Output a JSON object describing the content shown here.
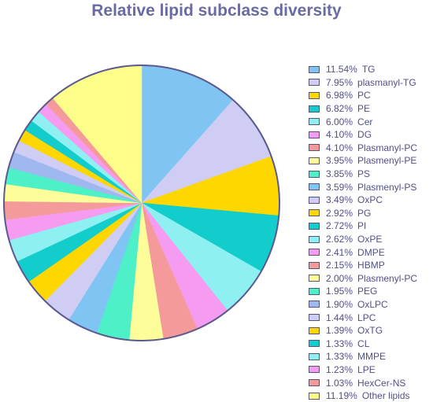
{
  "chart_data": {
    "type": "pie",
    "title": "Relative lipid subclass diversity",
    "legend_position": "right",
    "slices": [
      {
        "label": "TG",
        "value": 11.54,
        "pct_text": "11.54%",
        "color": "#7fc4f2"
      },
      {
        "label": "plasmanyl-TG",
        "value": 7.95,
        "pct_text": "7.95%",
        "color": "#cfcdf3"
      },
      {
        "label": "PC",
        "value": 6.98,
        "pct_text": "6.98%",
        "color": "#ffd700"
      },
      {
        "label": "PE",
        "value": 6.82,
        "pct_text": "6.82%",
        "color": "#13cccc"
      },
      {
        "label": "Cer",
        "value": 6.0,
        "pct_text": "6.00%",
        "color": "#8ef0f0"
      },
      {
        "label": "DG",
        "value": 4.1,
        "pct_text": "4.10%",
        "color": "#f59cf0"
      },
      {
        "label": "Plasmanyl-PC",
        "value": 4.1,
        "pct_text": "4.10%",
        "color": "#f59a9a"
      },
      {
        "label": "Plasmenyl-PE",
        "value": 3.95,
        "pct_text": "3.95%",
        "color": "#fdfd9a"
      },
      {
        "label": "PS",
        "value": 3.85,
        "pct_text": "3.85%",
        "color": "#4ef0c8"
      },
      {
        "label": "Plasmenyl-PS",
        "value": 3.59,
        "pct_text": "3.59%",
        "color": "#7fc4f2"
      },
      {
        "label": "OxPC",
        "value": 3.49,
        "pct_text": "3.49%",
        "color": "#cfcdf3"
      },
      {
        "label": "PG",
        "value": 2.92,
        "pct_text": "2.92%",
        "color": "#ffd700"
      },
      {
        "label": "PI",
        "value": 2.72,
        "pct_text": "2.72%",
        "color": "#13cccc"
      },
      {
        "label": "OxPE",
        "value": 2.62,
        "pct_text": "2.62%",
        "color": "#8ef0f0"
      },
      {
        "label": "DMPE",
        "value": 2.41,
        "pct_text": "2.41%",
        "color": "#f59cf0"
      },
      {
        "label": "HBMP",
        "value": 2.15,
        "pct_text": "2.15%",
        "color": "#f59a9a"
      },
      {
        "label": "Plasmenyl-PC",
        "value": 2.0,
        "pct_text": "2.00%",
        "color": "#fdfd9a"
      },
      {
        "label": "PEG",
        "value": 1.95,
        "pct_text": "1.95%",
        "color": "#4ef0c8"
      },
      {
        "label": "OxLPC",
        "value": 1.9,
        "pct_text": "1.90%",
        "color": "#9fb8f0"
      },
      {
        "label": "LPC",
        "value": 1.44,
        "pct_text": "1.44%",
        "color": "#cfcdf3"
      },
      {
        "label": "OxTG",
        "value": 1.39,
        "pct_text": "1.39%",
        "color": "#ffd700"
      },
      {
        "label": "CL",
        "value": 1.33,
        "pct_text": "1.33%",
        "color": "#13cccc"
      },
      {
        "label": "MMPE",
        "value": 1.33,
        "pct_text": "1.33%",
        "color": "#8ef0f0"
      },
      {
        "label": "LPE",
        "value": 1.23,
        "pct_text": "1.23%",
        "color": "#f59cf0"
      },
      {
        "label": "HexCer-NS",
        "value": 1.03,
        "pct_text": "1.03%",
        "color": "#f59a9a"
      },
      {
        "label": "Other lipids",
        "value": 11.19,
        "pct_text": "11.19%",
        "color": "#fdfd8a"
      }
    ]
  }
}
